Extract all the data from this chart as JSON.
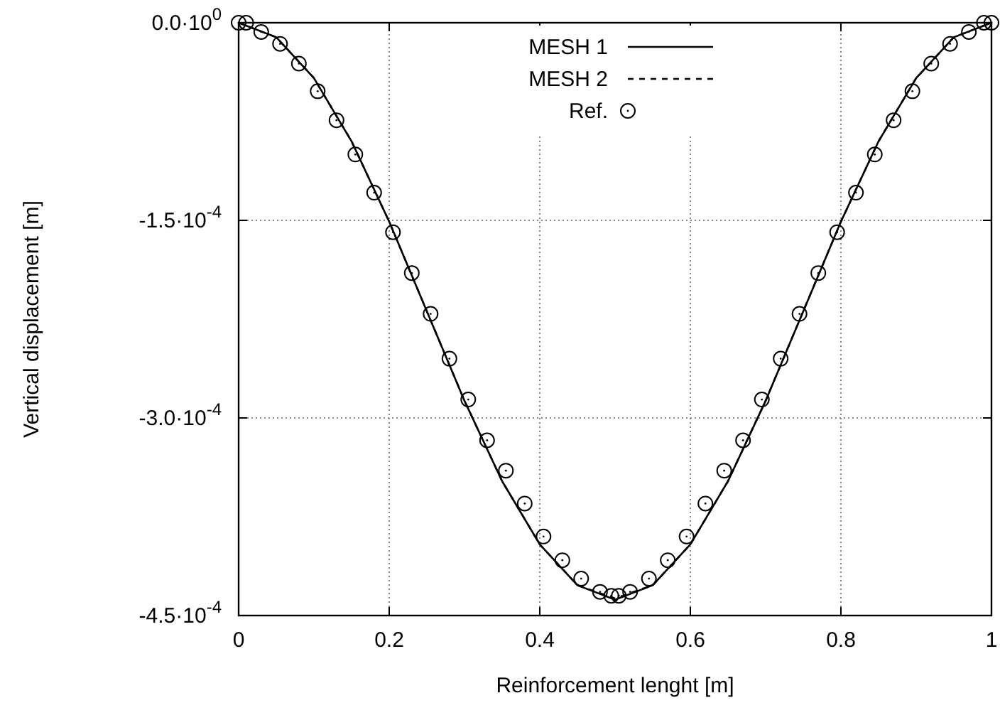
{
  "chart_data": {
    "type": "line",
    "xlabel": "Reinforcement lenght [m]",
    "ylabel": "Vertical displacement [m]",
    "xlim": [
      0,
      1
    ],
    "xticks": [
      0,
      0.2,
      0.4,
      0.6,
      0.8,
      1
    ],
    "ylim": [
      -0.00045,
      0
    ],
    "yticks": [
      {
        "value": 0,
        "label": "0.0·10$^{0}$"
      },
      {
        "value": -0.00015,
        "label": "-1.5·10$^{-4}$"
      },
      {
        "value": -0.0003,
        "label": "-3.0·10$^{-4}$"
      },
      {
        "value": -0.00045,
        "label": "-4.5·10$^{-4}$"
      }
    ],
    "grid": true,
    "legend": "top",
    "series": [
      {
        "name": "MESH 1",
        "color": "#000000",
        "line_style": "solid",
        "x": [
          0,
          0.05,
          0.1,
          0.15,
          0.2,
          0.25,
          0.3,
          0.35,
          0.4,
          0.45,
          0.5,
          0.55,
          0.6,
          0.65,
          0.7,
          0.75,
          0.8,
          0.85,
          0.9,
          0.95,
          1
        ],
        "values": [
          0,
          -1.1e-05,
          -4.2e-05,
          -9e-05,
          -0.000151,
          -0.000219,
          -0.000287,
          -0.000348,
          -0.000396,
          -0.000427,
          -0.000438,
          -0.000427,
          -0.000396,
          -0.000348,
          -0.000287,
          -0.000219,
          -0.000151,
          -9e-05,
          -4.2e-05,
          -1.1e-05,
          0
        ]
      },
      {
        "name": "MESH 2",
        "color": "#000000",
        "line_style": "dashed",
        "x": [
          0,
          0.05,
          0.1,
          0.15,
          0.2,
          0.25,
          0.3,
          0.35,
          0.4,
          0.45,
          0.5,
          0.55,
          0.6,
          0.65,
          0.7,
          0.75,
          0.8,
          0.85,
          0.9,
          0.95,
          1
        ],
        "values": [
          0,
          -1.1e-05,
          -4.2e-05,
          -9e-05,
          -0.000151,
          -0.000219,
          -0.000287,
          -0.000348,
          -0.000396,
          -0.000427,
          -0.000437,
          -0.000427,
          -0.000396,
          -0.000348,
          -0.000287,
          -0.000219,
          -0.000151,
          -9e-05,
          -4.2e-05,
          -1.1e-05,
          0
        ]
      },
      {
        "name": "Ref.",
        "type": "scatter",
        "color": "#000000",
        "marker": "circle",
        "x": [
          0,
          0.01,
          0.03,
          0.055,
          0.08,
          0.105,
          0.13,
          0.155,
          0.18,
          0.205,
          0.23,
          0.255,
          0.28,
          0.305,
          0.33,
          0.355,
          0.38,
          0.405,
          0.43,
          0.455,
          0.48,
          0.495,
          0.505,
          0.52,
          0.545,
          0.57,
          0.595,
          0.62,
          0.645,
          0.67,
          0.695,
          0.72,
          0.745,
          0.77,
          0.795,
          0.82,
          0.845,
          0.87,
          0.895,
          0.92,
          0.945,
          0.97,
          0.99,
          1
        ],
        "values": [
          0,
          0,
          -7e-06,
          -1.6e-05,
          -3.1e-05,
          -5.2e-05,
          -7.4e-05,
          -0.0001,
          -0.000129,
          -0.000159,
          -0.00019,
          -0.000221,
          -0.000255,
          -0.000286,
          -0.000317,
          -0.00034,
          -0.000365,
          -0.00039,
          -0.000408,
          -0.000422,
          -0.000432,
          -0.000435,
          -0.000435,
          -0.000432,
          -0.000422,
          -0.000408,
          -0.00039,
          -0.000365,
          -0.00034,
          -0.000317,
          -0.000286,
          -0.000255,
          -0.000221,
          -0.00019,
          -0.000159,
          -0.000129,
          -0.0001,
          -7.4e-05,
          -5.2e-05,
          -3.1e-05,
          -1.6e-05,
          -7e-06,
          0,
          0
        ]
      }
    ]
  }
}
